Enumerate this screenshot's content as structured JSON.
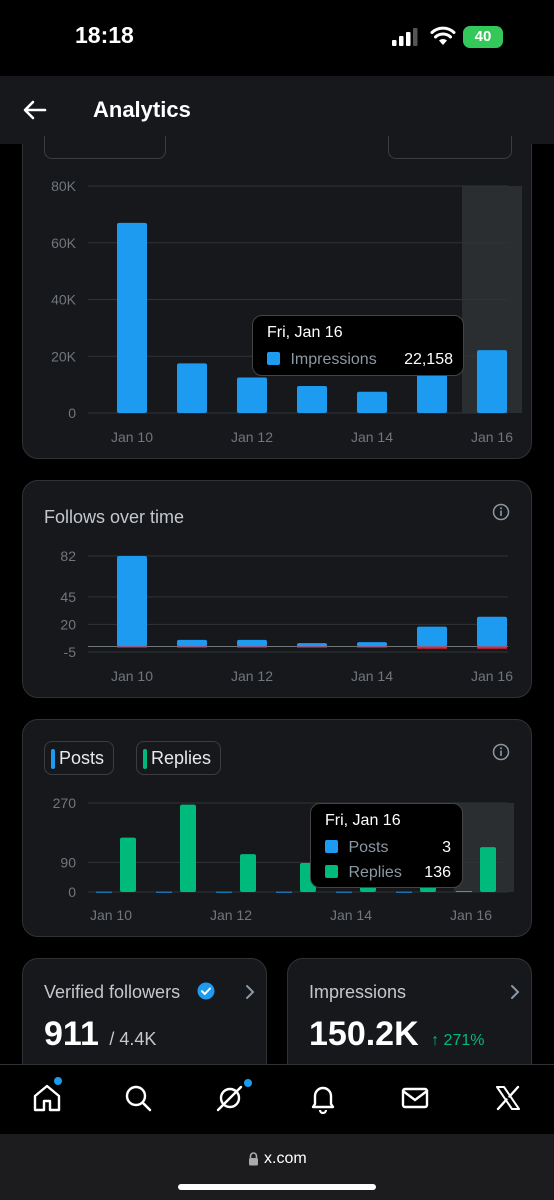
{
  "status": {
    "time": "18:18",
    "battery": "40"
  },
  "header": {
    "title": "Analytics"
  },
  "impressions_chart": {
    "y_ticks": [
      "80K",
      "60K",
      "40K",
      "20K",
      "0"
    ],
    "x_ticks": [
      "Jan 10",
      "Jan 12",
      "Jan 14",
      "Jan 16"
    ],
    "tooltip": {
      "date": "Fri, Jan 16",
      "label": "Impressions",
      "value": "22,158"
    }
  },
  "follows_chart": {
    "title": "Follows over time",
    "y_ticks": [
      "82",
      "45",
      "20",
      "-5"
    ],
    "x_ticks": [
      "Jan 10",
      "Jan 12",
      "Jan 14",
      "Jan 16"
    ]
  },
  "posts_chart": {
    "legend": {
      "posts": "Posts",
      "replies": "Replies"
    },
    "y_ticks": [
      "270",
      "90",
      "0"
    ],
    "x_ticks": [
      "Jan 10",
      "Jan 12",
      "Jan 14",
      "Jan 16"
    ],
    "tooltip": {
      "date": "Fri, Jan 16",
      "posts_label": "Posts",
      "posts_value": "3",
      "replies_label": "Replies",
      "replies_value": "136"
    }
  },
  "verified_card": {
    "title": "Verified followers",
    "value": "911",
    "total": "/ 4.4K"
  },
  "impressions_card": {
    "title": "Impressions",
    "value": "150.2K",
    "change": "↑ 271%"
  },
  "browser": {
    "url": "x.com"
  },
  "colors": {
    "blue": "#1d9bf0",
    "green": "#00ba7c",
    "red": "#f4212e",
    "background": "#000000",
    "card": "#16181c"
  },
  "icons": [
    "back-arrow-icon",
    "home-icon",
    "search-icon",
    "grok-icon",
    "bell-icon",
    "mail-icon",
    "x-logo-icon",
    "info-icon",
    "verified-badge-icon",
    "chevron-right-icon",
    "lock-icon"
  ],
  "chart_data": [
    {
      "type": "bar",
      "categories": [
        "Jan 10",
        "Jan 11",
        "Jan 12",
        "Jan 13",
        "Jan 14",
        "Jan 15",
        "Jan 16"
      ],
      "series": [
        {
          "name": "Impressions",
          "values": [
            67000,
            17500,
            12500,
            9500,
            7500,
            14000,
            22158
          ]
        }
      ],
      "ylim": [
        0,
        80000
      ],
      "highlight_index": 6
    },
    {
      "type": "bar",
      "categories": [
        "Jan 10",
        "Jan 11",
        "Jan 12",
        "Jan 13",
        "Jan 14",
        "Jan 15",
        "Jan 16"
      ],
      "series": [
        {
          "values": [
            82,
            6,
            6,
            3,
            4,
            18,
            27
          ]
        },
        {
          "values": [
            -1,
            -1,
            -1,
            -1,
            -1,
            -2,
            -2
          ]
        }
      ],
      "ylim": [
        -5,
        82
      ]
    },
    {
      "type": "bar",
      "categories": [
        "Jan 10",
        "Jan 11",
        "Jan 12",
        "Jan 13",
        "Jan 14",
        "Jan 15",
        "Jan 16"
      ],
      "series": [
        {
          "name": "Posts",
          "values": [
            1,
            1,
            1,
            1,
            1,
            1,
            3
          ]
        },
        {
          "name": "Replies",
          "values": [
            165,
            265,
            115,
            88,
            52,
            40,
            136
          ]
        }
      ],
      "ylim": [
        0,
        270
      ],
      "highlight_index": 6
    }
  ]
}
